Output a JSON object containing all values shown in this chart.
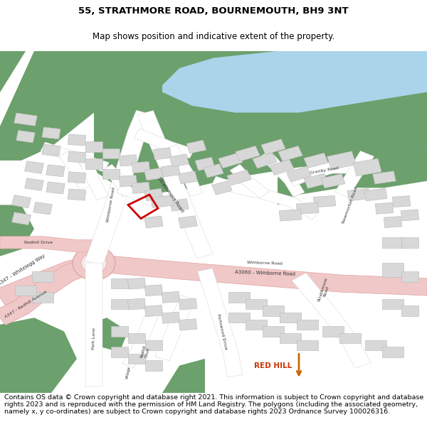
{
  "title_line1": "55, STRATHMORE ROAD, BOURNEMOUTH, BH9 3NT",
  "title_line2": "Map shows position and indicative extent of the property.",
  "copyright_text": "Contains OS data © Crown copyright and database right 2021. This information is subject to Crown copyright and database rights 2023 and is reproduced with the permission of HM Land Registry. The polygons (including the associated geometry, namely x, y co-ordinates) are subject to Crown copyright and database rights 2023 Ordnance Survey 100026316.",
  "title_fontsize": 9.5,
  "subtitle_fontsize": 8.5,
  "copyright_fontsize": 6.8,
  "bg_color": "#ffffff",
  "title_color": "#000000",
  "colors": {
    "green": "#6ca06c",
    "green2": "#7ab07a",
    "water": "#aad4ea",
    "road_pink": "#f0c8c8",
    "road_pink_dark": "#e8a8a8",
    "road_white": "#ffffff",
    "building": "#d8d8d8",
    "building_edge": "#b8b8b8",
    "map_bg": "#f8f8f8",
    "red_plot": "#cc0000",
    "text": "#333333",
    "road_outline": "#cccccc"
  }
}
